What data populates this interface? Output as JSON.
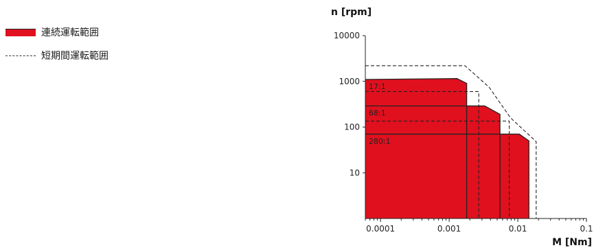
{
  "legend": {
    "continuous_label": "連続運転範囲",
    "short_term_label": "短期間運転範囲"
  },
  "colors": {
    "continuous": "#e0101e",
    "outline": "#222222"
  },
  "chart_data": {
    "type": "area",
    "xlabel": "M [Nm]",
    "ylabel": "n [rpm]",
    "xscale": "log",
    "yscale": "log",
    "xlim": [
      6e-05,
      0.1
    ],
    "ylim": [
      1,
      10000
    ],
    "x_ticks": [
      {
        "value": 0.0001,
        "label": "0.0001"
      },
      {
        "value": 0.001,
        "label": "0.001"
      },
      {
        "value": 0.01,
        "label": "0.01"
      },
      {
        "value": 0.1,
        "label": "0.1"
      }
    ],
    "y_ticks": [
      {
        "value": 10000,
        "label": "10000"
      },
      {
        "value": 1000,
        "label": "1000"
      },
      {
        "value": 100,
        "label": "100"
      },
      {
        "value": 10,
        "label": "10"
      }
    ],
    "continuous": [
      {
        "ratio": "17:1",
        "points": [
          [
            6e-05,
            1100
          ],
          [
            0.0013,
            1150
          ],
          [
            0.0018,
            900
          ],
          [
            0.0018,
            1
          ]
        ]
      },
      {
        "ratio": "68:1",
        "points": [
          [
            6e-05,
            290
          ],
          [
            0.0033,
            290
          ],
          [
            0.0055,
            190
          ],
          [
            0.0055,
            1
          ]
        ]
      },
      {
        "ratio": "280:1",
        "points": [
          [
            6e-05,
            70
          ],
          [
            0.0105,
            70
          ],
          [
            0.0145,
            50
          ],
          [
            0.0145,
            1
          ]
        ]
      }
    ],
    "short_term": [
      {
        "points": [
          [
            6e-05,
            2200
          ],
          [
            0.0017,
            2200
          ],
          [
            0.0038,
            750
          ],
          [
            0.0078,
            160
          ],
          [
            0.0185,
            48
          ],
          [
            0.0185,
            1
          ]
        ]
      },
      {
        "points": [
          [
            6e-05,
            600
          ],
          [
            0.0027,
            600
          ],
          [
            0.0027,
            1
          ]
        ]
      },
      {
        "points": [
          [
            6e-05,
            135
          ],
          [
            0.0075,
            135
          ],
          [
            0.0075,
            1
          ]
        ]
      }
    ],
    "grid": false,
    "legend_position": "top-left"
  }
}
